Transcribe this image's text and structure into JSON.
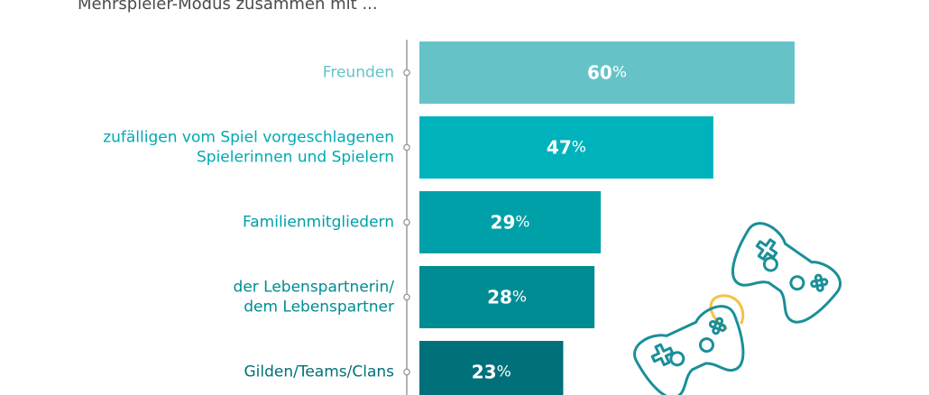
{
  "subtitle": "Mehrspieler-Modus zusammen mit ...",
  "chart_data": {
    "type": "bar",
    "orientation": "horizontal",
    "categories": [
      [
        "Freunden"
      ],
      [
        "zufälligen vom Spiel vorgeschlagenen",
        "Spielerinnen und Spielern"
      ],
      [
        "Familienmitgliedern"
      ],
      [
        "der Lebenspartnerin/",
        "dem Lebenspartner"
      ],
      [
        "Gilden/Teams/Clans"
      ]
    ],
    "values": [
      60,
      47,
      29,
      28,
      23
    ],
    "unit": "%",
    "xlim": [
      0,
      100
    ],
    "bar_colors": [
      "#65c3c8",
      "#00b2bc",
      "#00a0a8",
      "#008c93",
      "#00707a"
    ],
    "label_colors": [
      "#65c3c8",
      "#00a9b3",
      "#00a0a8",
      "#008c93",
      "#00707a"
    ],
    "grid": false,
    "legend": "none"
  },
  "illustration": {
    "icons": [
      "game-controller-icon",
      "game-controller-icon"
    ],
    "colors": {
      "outline": "#1a8f99",
      "cable": "#f5c242"
    }
  }
}
